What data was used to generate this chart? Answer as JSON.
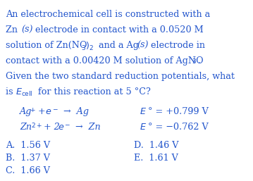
{
  "bg_color": "#ffffff",
  "text_color": "#2255cc",
  "fig_width": 3.59,
  "fig_height": 2.57,
  "dpi": 100,
  "font_size": 9.2
}
